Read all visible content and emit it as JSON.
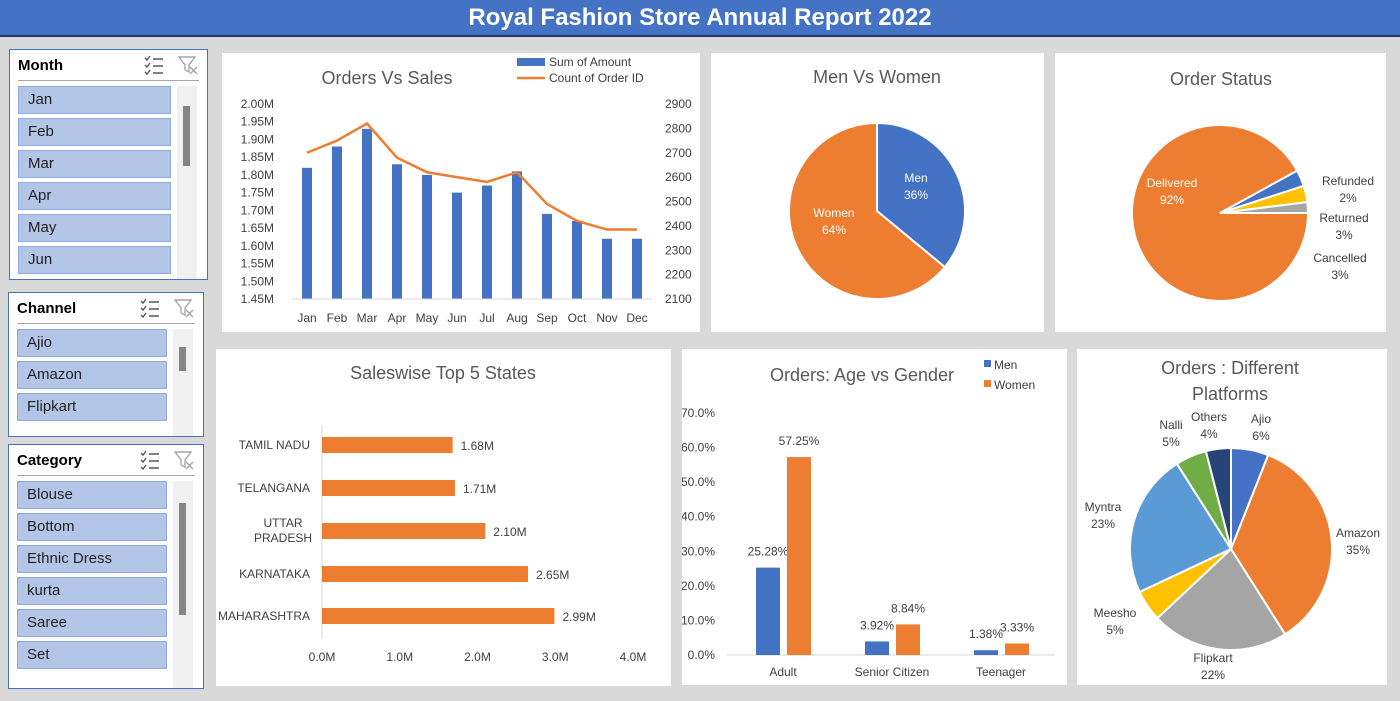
{
  "header": {
    "title": "Royal Fashion Store Annual Report 2022"
  },
  "slicers": {
    "month": {
      "title": "Month",
      "items": [
        "Jan",
        "Feb",
        "Mar",
        "Apr",
        "May",
        "Jun"
      ]
    },
    "channel": {
      "title": "Channel",
      "items": [
        "Ajio",
        "Amazon",
        "Flipkart"
      ]
    },
    "category": {
      "title": "Category",
      "items": [
        "Blouse",
        "Bottom",
        "Ethnic Dress",
        "kurta",
        "Saree",
        "Set"
      ]
    }
  },
  "icons": {
    "multi_select": "multi-select-icon",
    "clear_filter": "clear-filter-icon"
  },
  "colors": {
    "accent": "#4472c4",
    "orange": "#ed7d31",
    "gray": "#a5a5a5",
    "gold": "#ffc000",
    "lightblue": "#5b9bd5",
    "green": "#70ad47",
    "navy": "#264478"
  },
  "chart_data": [
    {
      "id": "orders-vs-sales",
      "type": "bar",
      "title": "Orders Vs Sales",
      "categories": [
        "Jan",
        "Feb",
        "Mar",
        "Apr",
        "May",
        "Jun",
        "Jul",
        "Aug",
        "Sep",
        "Oct",
        "Nov",
        "Dec"
      ],
      "series": [
        {
          "name": "Sum of Amount",
          "type": "bar",
          "axis": "left",
          "values": [
            1.82,
            1.88,
            1.93,
            1.83,
            1.8,
            1.75,
            1.77,
            1.81,
            1.69,
            1.67,
            1.62,
            1.62
          ]
        },
        {
          "name": "Count of Order ID",
          "type": "line",
          "axis": "right",
          "values": [
            2700,
            2750,
            2820,
            2680,
            2620,
            2600,
            2580,
            2620,
            2490,
            2420,
            2385,
            2385
          ]
        }
      ],
      "yticks_left": [
        "2.00M",
        "1.95M",
        "1.90M",
        "1.85M",
        "1.80M",
        "1.75M",
        "1.70M",
        "1.65M",
        "1.60M",
        "1.55M",
        "1.50M",
        "1.45M"
      ],
      "ylim_left": [
        1.45,
        2.0
      ],
      "yticks_right": [
        "2900",
        "2800",
        "2700",
        "2600",
        "2500",
        "2400",
        "2300",
        "2200",
        "2100"
      ],
      "ylim_right": [
        2100,
        2900
      ],
      "legend": "top-right"
    },
    {
      "id": "men-vs-women",
      "type": "pie",
      "title": "Men Vs Women",
      "slices": [
        {
          "label": "Men",
          "value": 36,
          "pct": "36%",
          "color": "#4472c4"
        },
        {
          "label": "Women",
          "value": 64,
          "pct": "64%",
          "color": "#ed7d31"
        }
      ]
    },
    {
      "id": "order-status",
      "type": "pie",
      "title": "Order Status",
      "slices": [
        {
          "label": "Delivered",
          "value": 92,
          "pct": "92%",
          "color": "#ed7d31"
        },
        {
          "label": "Refunded",
          "value": 2,
          "pct": "2%",
          "color": "#a5a5a5"
        },
        {
          "label": "Returned",
          "value": 3,
          "pct": "3%",
          "color": "#ffc000"
        },
        {
          "label": "Cancelled",
          "value": 3,
          "pct": "3%",
          "color": "#4472c4"
        }
      ]
    },
    {
      "id": "top-states",
      "type": "bar",
      "orientation": "horizontal",
      "title": "Saleswise Top 5 States",
      "categories": [
        "TAMIL NADU",
        "TELANGANA",
        "UTTAR PRADESH",
        "KARNATAKA",
        "MAHARASHTRA"
      ],
      "values": [
        1.68,
        1.71,
        2.1,
        2.65,
        2.99
      ],
      "value_labels": [
        "1.68M",
        "1.71M",
        "2.10M",
        "2.65M",
        "2.99M"
      ],
      "xticks": [
        "0.0M",
        "1.0M",
        "2.0M",
        "3.0M",
        "4.0M"
      ],
      "xlim": [
        0,
        4
      ]
    },
    {
      "id": "age-vs-gender",
      "type": "bar",
      "title": "Orders: Age vs Gender",
      "categories": [
        "Adult",
        "Senior Citizen",
        "Teenager"
      ],
      "series": [
        {
          "name": "Men",
          "values": [
            25.28,
            3.92,
            1.38
          ],
          "labels": [
            "25.28%",
            "3.92%",
            "1.38%"
          ]
        },
        {
          "name": "Women",
          "values": [
            57.25,
            8.84,
            3.33
          ],
          "labels": [
            "57.25%",
            "8.84%",
            "3.33%"
          ]
        }
      ],
      "yticks": [
        "70.0%",
        "60.0%",
        "50.0%",
        "40.0%",
        "30.0%",
        "20.0%",
        "10.0%",
        "0.0%"
      ],
      "ylim": [
        0,
        70
      ],
      "legend": "top-right"
    },
    {
      "id": "platforms",
      "type": "pie",
      "title": "Orders : Different Platforms",
      "title_lines": [
        "Orders : Different",
        "Platforms"
      ],
      "slices": [
        {
          "label": "Ajio",
          "value": 6,
          "pct": "6%",
          "color": "#4472c4"
        },
        {
          "label": "Amazon",
          "value": 35,
          "pct": "35%",
          "color": "#ed7d31"
        },
        {
          "label": "Flipkart",
          "value": 22,
          "pct": "22%",
          "color": "#a5a5a5"
        },
        {
          "label": "Meesho",
          "value": 5,
          "pct": "5%",
          "color": "#ffc000"
        },
        {
          "label": "Myntra",
          "value": 23,
          "pct": "23%",
          "color": "#5b9bd5"
        },
        {
          "label": "Nalli",
          "value": 5,
          "pct": "5%",
          "color": "#70ad47"
        },
        {
          "label": "Others",
          "value": 4,
          "pct": "4%",
          "color": "#264478"
        }
      ]
    }
  ]
}
